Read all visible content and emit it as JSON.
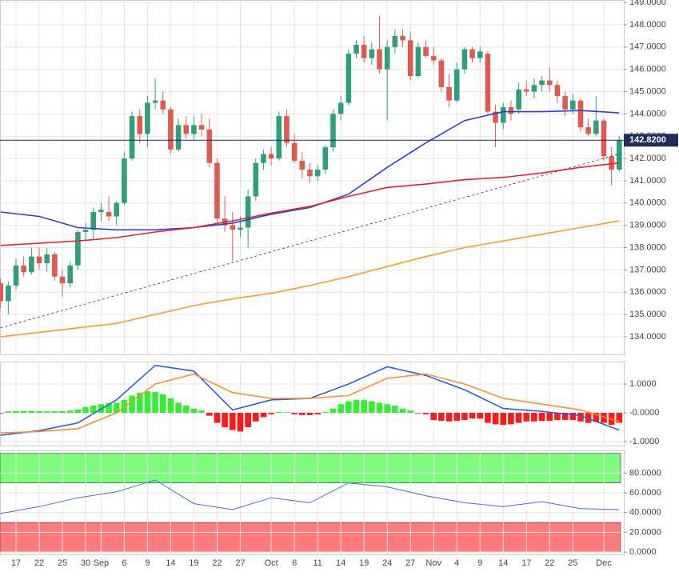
{
  "chart_data": [
    {
      "type": "candlestick",
      "x": [
        0,
        1,
        2,
        3,
        4,
        5,
        6,
        7,
        8,
        9,
        10,
        11,
        12,
        13,
        14,
        15,
        16,
        17,
        18,
        19,
        20,
        21,
        22,
        23,
        24,
        25,
        26,
        27,
        28,
        29,
        30,
        31,
        32,
        33,
        34,
        35,
        36,
        37,
        38,
        39,
        40,
        41,
        42,
        43,
        44,
        45,
        46,
        47,
        48,
        49,
        50,
        51,
        52,
        53,
        54,
        55,
        56,
        57,
        58,
        59,
        60,
        61,
        62,
        63,
        64,
        65,
        66,
        67,
        68,
        69,
        70,
        71,
        72,
        73,
        74,
        75,
        76,
        77,
        78,
        79,
        80
      ],
      "open": [
        136.4,
        135.6,
        136.3,
        137.2,
        136.9,
        137.6,
        137.3,
        137.7,
        136.7,
        136.4,
        137.2,
        138.7,
        138.8,
        139.6,
        139.6,
        139.4,
        140.0,
        142.0,
        143.9,
        143.1,
        144.5,
        144.6,
        144.2,
        142.4,
        143.5,
        143.1,
        143.5,
        143.3,
        141.8,
        139.3,
        139.0,
        138.8,
        138.9,
        140.3,
        141.8,
        142.2,
        142.0,
        143.9,
        142.7,
        141.9,
        141.5,
        141.2,
        141.5,
        142.5,
        144.0,
        144.5,
        146.7,
        147.1,
        146.5,
        146.9,
        146.0,
        147.0,
        147.5,
        147.3,
        145.7,
        147.0,
        146.6,
        146.4,
        145.2,
        144.6,
        146.0,
        146.9,
        146.5,
        146.7,
        144.1,
        143.6,
        144.3,
        144.2,
        145.1,
        145.0,
        145.3,
        145.5,
        145.3,
        144.8,
        144.2,
        144.6,
        143.4,
        143.1,
        143.7,
        142.1,
        141.5
      ],
      "high": [
        136.6,
        136.5,
        137.5,
        137.6,
        138.0,
        138.0,
        138.0,
        137.8,
        137.0,
        137.4,
        138.8,
        139.1,
        139.8,
        140.0,
        140.3,
        140.1,
        142.3,
        144.1,
        144.2,
        144.8,
        145.6,
        145.0,
        144.3,
        143.8,
        143.9,
        143.9,
        144.0,
        143.8,
        142.0,
        140.3,
        139.6,
        139.4,
        140.6,
        142.0,
        142.4,
        142.5,
        144.1,
        144.2,
        143.1,
        142.3,
        141.8,
        141.7,
        142.6,
        144.2,
        144.8,
        146.9,
        147.3,
        147.5,
        147.2,
        148.4,
        147.3,
        147.8,
        147.8,
        147.7,
        147.2,
        147.3,
        147.0,
        146.5,
        145.8,
        146.3,
        147.0,
        147.0,
        147.0,
        146.8,
        144.4,
        144.5,
        144.6,
        145.4,
        145.5,
        145.6,
        145.7,
        146.1,
        145.5,
        145.0,
        144.9,
        144.7,
        143.8,
        144.8,
        143.8,
        142.5,
        143.0
      ],
      "low": [
        135.3,
        135.0,
        136.1,
        136.7,
        136.8,
        137.0,
        136.9,
        136.5,
        135.8,
        136.2,
        137.0,
        138.3,
        138.4,
        139.2,
        139.2,
        139.0,
        139.9,
        141.9,
        142.7,
        142.5,
        144.2,
        144.0,
        142.2,
        142.3,
        142.9,
        142.8,
        143.0,
        141.6,
        139.0,
        138.7,
        137.4,
        138.5,
        138.0,
        140.1,
        141.5,
        141.7,
        141.9,
        142.5,
        141.8,
        141.1,
        140.9,
        141.0,
        141.3,
        142.3,
        143.7,
        144.4,
        146.5,
        146.3,
        146.2,
        145.8,
        143.7,
        146.7,
        147.0,
        145.5,
        145.6,
        146.5,
        146.2,
        145.0,
        144.3,
        144.5,
        145.8,
        146.3,
        146.3,
        144.0,
        142.5,
        143.3,
        143.7,
        144.0,
        144.8,
        144.7,
        145.0,
        145.0,
        144.5,
        143.9,
        144.0,
        143.2,
        143.0,
        143.0,
        141.9,
        140.8,
        141.4
      ],
      "close": [
        135.6,
        136.3,
        137.2,
        136.9,
        137.6,
        137.3,
        137.7,
        136.7,
        136.4,
        137.2,
        138.7,
        138.8,
        139.6,
        139.7,
        139.4,
        140.0,
        142.0,
        143.9,
        143.1,
        144.5,
        144.6,
        144.2,
        142.4,
        143.5,
        143.1,
        143.5,
        143.3,
        141.8,
        139.3,
        139.0,
        138.8,
        138.9,
        140.3,
        141.8,
        142.2,
        142.0,
        143.9,
        142.7,
        141.9,
        141.5,
        141.2,
        141.5,
        142.5,
        144.0,
        144.5,
        146.7,
        147.1,
        146.5,
        146.9,
        146.0,
        147.0,
        147.5,
        147.3,
        145.7,
        147.0,
        146.6,
        146.4,
        145.2,
        144.6,
        146.0,
        146.9,
        146.5,
        146.8,
        144.1,
        143.6,
        144.3,
        144.0,
        145.1,
        145.0,
        145.3,
        145.5,
        145.3,
        144.8,
        144.2,
        144.6,
        143.4,
        143.1,
        143.7,
        142.1,
        141.5,
        142.82
      ],
      "up_color": "#2e9e7c",
      "down_color": "#e05a4e",
      "lines": [
        {
          "color": "#2b3fd6",
          "x": [
            0,
            5,
            10,
            15,
            20,
            25,
            30,
            35,
            40,
            45,
            50,
            55,
            60,
            65,
            70,
            75,
            80
          ],
          "values": [
            139.6,
            139.4,
            138.9,
            138.8,
            138.8,
            138.9,
            139.1,
            139.5,
            139.8,
            140.4,
            141.6,
            142.7,
            143.7,
            144.1,
            144.1,
            144.15,
            144.05
          ]
        },
        {
          "color": "#e8202a",
          "x": [
            0,
            5,
            10,
            15,
            20,
            25,
            30,
            35,
            40,
            45,
            50,
            55,
            60,
            65,
            70,
            75,
            80
          ],
          "values": [
            138.1,
            138.2,
            138.3,
            138.45,
            138.7,
            138.9,
            139.2,
            139.55,
            139.85,
            140.3,
            140.7,
            140.85,
            141.05,
            141.15,
            141.35,
            141.6,
            141.8
          ]
        },
        {
          "color": "#ff9a1f",
          "x": [
            0,
            5,
            10,
            15,
            20,
            25,
            30,
            35,
            40,
            45,
            50,
            55,
            60,
            65,
            70,
            75,
            80
          ],
          "values": [
            134.0,
            134.2,
            134.4,
            134.6,
            135.0,
            135.4,
            135.7,
            135.95,
            136.3,
            136.7,
            137.15,
            137.6,
            138.0,
            138.3,
            138.6,
            138.9,
            139.2
          ]
        },
        {
          "color": "#333333",
          "dashed": true,
          "x": [
            0,
            80
          ],
          "values": [
            134.4,
            142.2
          ]
        }
      ],
      "last_value": {
        "value": 142.82,
        "label": "142.8200"
      },
      "xlim": [
        -0.07,
        80.59
      ],
      "ylim": [
        133.21,
        149.11
      ],
      "yticks": [
        {
          "value": 134,
          "label": "134.0000"
        },
        {
          "value": 135,
          "label": "135.0000"
        },
        {
          "value": 136,
          "label": "136.0000"
        },
        {
          "value": 137,
          "label": "137.0000"
        },
        {
          "value": 138,
          "label": "138.0000"
        },
        {
          "value": 139,
          "label": "139.0000"
        },
        {
          "value": 140,
          "label": "140.0000"
        },
        {
          "value": 141,
          "label": "141.0000"
        },
        {
          "value": 142,
          "label": "142.0000"
        },
        {
          "value": 143,
          "label": "143.0000"
        },
        {
          "value": 144,
          "label": "144.0000"
        },
        {
          "value": 145,
          "label": "145.0000"
        },
        {
          "value": 146,
          "label": "146.0000"
        },
        {
          "value": 147,
          "label": "147.0000"
        },
        {
          "value": 148,
          "label": "148.0000"
        },
        {
          "value": 149,
          "label": "149.0000"
        }
      ]
    },
    {
      "type": "bar",
      "values": [
        -0.02,
        0.05,
        0.06,
        0.07,
        0.07,
        0.06,
        0.05,
        0.05,
        0.06,
        0.08,
        0.12,
        0.2,
        0.25,
        0.3,
        0.33,
        0.35,
        0.45,
        0.6,
        0.7,
        0.75,
        0.72,
        0.65,
        0.5,
        0.35,
        0.25,
        0.15,
        0.08,
        -0.1,
        -0.35,
        -0.5,
        -0.6,
        -0.65,
        -0.5,
        -0.3,
        -0.15,
        -0.05,
        0.03,
        0.02,
        -0.05,
        -0.08,
        -0.08,
        -0.05,
        0.03,
        0.15,
        0.3,
        0.4,
        0.45,
        0.45,
        0.4,
        0.35,
        0.3,
        0.25,
        0.15,
        0.08,
        -0.02,
        -0.05,
        -0.25,
        -0.28,
        -0.3,
        -0.28,
        -0.25,
        -0.2,
        -0.2,
        -0.35,
        -0.4,
        -0.42,
        -0.4,
        -0.35,
        -0.3,
        -0.3,
        -0.28,
        -0.28,
        -0.25,
        -0.25,
        -0.25,
        -0.3,
        -0.35,
        -0.32,
        -0.35,
        -0.42,
        -0.35
      ],
      "pos_color": "#33ee33",
      "neg_color": "#ff1a1a",
      "lines": [
        {
          "color": "#2b5fe0",
          "x": [
            0,
            5,
            10,
            15,
            20,
            25,
            30,
            35,
            40,
            45,
            50,
            55,
            60,
            65,
            70,
            75,
            80
          ],
          "values": [
            -0.78,
            -0.62,
            -0.35,
            0.45,
            1.65,
            1.45,
            0.1,
            0.45,
            0.5,
            1.0,
            1.6,
            1.3,
            0.8,
            0.15,
            0.05,
            -0.1,
            -0.6
          ]
        },
        {
          "color": "#ff8c2a",
          "x": [
            0,
            5,
            10,
            15,
            20,
            25,
            30,
            35,
            40,
            45,
            50,
            55,
            60,
            65,
            70,
            75,
            80
          ],
          "values": [
            -0.7,
            -0.65,
            -0.55,
            0.0,
            1.0,
            1.35,
            0.7,
            0.5,
            0.5,
            0.6,
            1.2,
            1.35,
            1.0,
            0.5,
            0.3,
            0.1,
            -0.3
          ]
        }
      ],
      "xlim": [
        -0.07,
        80.59
      ],
      "ylim": [
        -1.14,
        1.78
      ],
      "yticks": [
        {
          "value": 1,
          "label": "1.0000"
        },
        {
          "value": 0,
          "label": "-0.0000"
        },
        {
          "value": -1,
          "label": "-1.0000"
        }
      ]
    },
    {
      "type": "line",
      "x": [
        0,
        5,
        10,
        15,
        20,
        25,
        30,
        35,
        40,
        45,
        50,
        55,
        60,
        65,
        70,
        75,
        80
      ],
      "values": [
        39,
        46,
        55,
        61,
        73,
        49,
        43,
        55,
        50,
        70,
        66,
        57,
        50,
        46,
        51,
        44,
        43
      ],
      "color": "#3f6fe0",
      "bands": [
        {
          "from": 70,
          "to": 100,
          "color": "#7dfc7d"
        },
        {
          "from": 0,
          "to": 30,
          "color": "#ff7b7b"
        }
      ],
      "xlim": [
        -0.07,
        80.59
      ],
      "ylim": [
        -2.4,
        103
      ],
      "yticks": [
        {
          "value": 0,
          "label": "0.0000"
        },
        {
          "value": 20,
          "label": "20.0000"
        },
        {
          "value": 40,
          "label": "40.0000"
        },
        {
          "value": 60,
          "label": "60.0000"
        },
        {
          "value": 80,
          "label": "80.0000"
        }
      ],
      "xticks": [
        {
          "value": 2,
          "label": "17"
        },
        {
          "value": 5,
          "label": "22"
        },
        {
          "value": 8,
          "label": "25"
        },
        {
          "value": 11,
          "label": "30"
        },
        {
          "value": 13,
          "label": "Sep"
        },
        {
          "value": 16,
          "label": "6"
        },
        {
          "value": 19,
          "label": "9"
        },
        {
          "value": 22,
          "label": "14"
        },
        {
          "value": 25,
          "label": "19"
        },
        {
          "value": 28,
          "label": "22"
        },
        {
          "value": 31,
          "label": "27"
        },
        {
          "value": 35,
          "label": "Oct"
        },
        {
          "value": 38,
          "label": "6"
        },
        {
          "value": 41,
          "label": "11"
        },
        {
          "value": 44,
          "label": "14"
        },
        {
          "value": 47,
          "label": "19"
        },
        {
          "value": 50,
          "label": "24"
        },
        {
          "value": 53,
          "label": "27"
        },
        {
          "value": 56,
          "label": "Nov"
        },
        {
          "value": 59,
          "label": "4"
        },
        {
          "value": 62,
          "label": "9"
        },
        {
          "value": 65,
          "label": "14"
        },
        {
          "value": 68,
          "label": "17"
        },
        {
          "value": 71,
          "label": "22"
        },
        {
          "value": 74,
          "label": "25"
        },
        {
          "value": 78,
          "label": "Dec"
        }
      ]
    }
  ]
}
